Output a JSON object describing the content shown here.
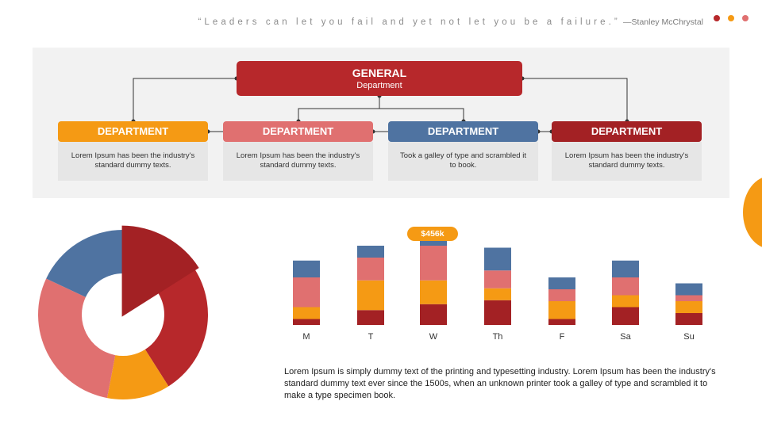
{
  "header": {
    "quote": "“Leaders can let you fail and yet not let you be a failure.”",
    "author": "—Stanley McChrystal"
  },
  "colors": {
    "dark_red": "#a32124",
    "red": "#b7282b",
    "salmon": "#e07070",
    "orange": "#f59a14",
    "blue": "#4f73a1",
    "panel": "#f2f2f2"
  },
  "org": {
    "general": {
      "title": "GENERAL",
      "subtitle": "Department"
    },
    "departments": [
      {
        "label": "DEPARTMENT",
        "text": "Lorem Ipsum has been the industry's standard dummy texts.",
        "color": "#f59a14"
      },
      {
        "label": "DEPARTMENT",
        "text": "Lorem Ipsum has been the industry's standard dummy texts.",
        "color": "#e07070"
      },
      {
        "label": "DEPARTMENT",
        "text": "Took a galley of type and scrambled it to book.",
        "color": "#4f73a1"
      },
      {
        "label": "DEPARTMENT",
        "text": "Lorem Ipsum has been the industry's standard dummy texts.",
        "color": "#a32124"
      }
    ]
  },
  "chart_data": [
    {
      "type": "pie",
      "title": "",
      "slices": [
        {
          "value": 16,
          "color": "#a32124",
          "exploded": true
        },
        {
          "value": 25,
          "color": "#b7282b"
        },
        {
          "value": 12,
          "color": "#f59a14"
        },
        {
          "value": 29,
          "color": "#e07070"
        },
        {
          "value": 18,
          "color": "#4f73a1"
        }
      ]
    },
    {
      "type": "bar",
      "stacked": true,
      "title": "",
      "categories": [
        "M",
        "T",
        "W",
        "Th",
        "F",
        "Sa",
        "Su"
      ],
      "series": [
        {
          "color": "#a32124",
          "values": [
            6,
            15,
            21,
            25,
            6,
            18,
            12
          ]
        },
        {
          "color": "#f59a14",
          "values": [
            12,
            30,
            24,
            12,
            18,
            12,
            12
          ]
        },
        {
          "color": "#e07070",
          "values": [
            30,
            23,
            35,
            18,
            12,
            18,
            6
          ]
        },
        {
          "color": "#4f73a1",
          "values": [
            17,
            12,
            18,
            23,
            12,
            17,
            12
          ]
        }
      ],
      "ylim": [
        0,
        100
      ],
      "annotation": "$456k",
      "annotation_category": "W"
    }
  ],
  "body_text": "Lorem Ipsum is simply dummy text of the printing and typesetting industry. Lorem Ipsum has been the industry's standard dummy text ever since the 1500s, when an unknown printer took a galley of type and scrambled it to make a type specimen book."
}
